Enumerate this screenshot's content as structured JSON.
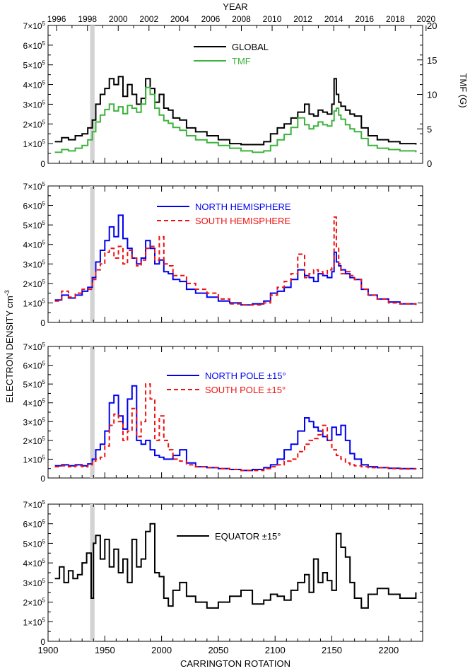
{
  "figure": {
    "top_axis_label": "YEAR",
    "bottom_axis_label": "CARRINGTON ROTATION",
    "y_axis_label": "ELECTRON DENSITY cm",
    "y_axis_label_sup": "-3",
    "shaded_band_cr": [
      1937,
      1941
    ],
    "x_range_cr": [
      1900,
      2230
    ],
    "year_ticks": [
      "1996",
      "1998",
      "2000",
      "2002",
      "2004",
      "2006",
      "2008",
      "2010",
      "2012",
      "2014",
      "2016",
      "2018",
      "2020"
    ],
    "year_tick_cr": [
      1907.5,
      1934.7,
      1961.8,
      1988.9,
      2016.0,
      2043.2,
      2070.3,
      2097.4,
      2124.5,
      2151.7,
      2178.8,
      2205.9,
      2233.0
    ],
    "cr_ticks": [
      "1900",
      "1950",
      "2000",
      "2050",
      "2100",
      "2150",
      "2200"
    ],
    "y_tick_labels": [
      {
        "mant": "0",
        "exp": ""
      },
      {
        "mant": "1×10",
        "exp": "5"
      },
      {
        "mant": "2×10",
        "exp": "5"
      },
      {
        "mant": "3×10",
        "exp": "5"
      },
      {
        "mant": "4×10",
        "exp": "5"
      },
      {
        "mant": "5×10",
        "exp": "5"
      },
      {
        "mant": "6×10",
        "exp": "5"
      },
      {
        "mant": "7×10",
        "exp": "5"
      }
    ],
    "right_axis": {
      "label": "TMF (G)",
      "ticks": [
        "0",
        "5",
        "10",
        "15",
        "20"
      ],
      "range": [
        0,
        20
      ]
    }
  },
  "legend": {
    "panel1": [
      {
        "name": "GLOBAL",
        "color": "#000000"
      },
      {
        "name": "TMF",
        "color": "#3cb33c"
      }
    ],
    "panel2": [
      {
        "name": "NORTH HEMISPHERE",
        "color": "#0000ee"
      },
      {
        "name": "SOUTH HEMISPHERE",
        "color": "#ee1111"
      }
    ],
    "panel3": [
      {
        "name": "NORTH POLE ±15°",
        "color": "#0000ee"
      },
      {
        "name": "SOUTH POLE ±15°",
        "color": "#ee1111"
      }
    ],
    "panel4": [
      {
        "name": "EQUATOR ±15°",
        "color": "#000000"
      }
    ]
  },
  "chart_data": [
    {
      "type": "line",
      "title": "",
      "xlabel": "CARRINGTON ROTATION",
      "ylabel": "ELECTRON DENSITY cm^-3",
      "ylim": [
        0,
        700000
      ],
      "xlim": [
        1900,
        2230
      ],
      "series": [
        {
          "name": "GLOBAL",
          "color": "#000000",
          "dash": "none",
          "x": [
            1906,
            1912,
            1918,
            1924,
            1930,
            1935,
            1939,
            1942,
            1946,
            1950,
            1954,
            1958,
            1962,
            1966,
            1970,
            1974,
            1978,
            1982,
            1986,
            1990,
            1994,
            1998,
            2002,
            2006,
            2010,
            2016,
            2022,
            2030,
            2040,
            2050,
            2060,
            2070,
            2080,
            2090,
            2096,
            2102,
            2108,
            2114,
            2120,
            2126,
            2130,
            2134,
            2138,
            2142,
            2146,
            2150,
            2152,
            2154,
            2156,
            2158,
            2162,
            2166,
            2170,
            2176,
            2182,
            2190,
            2200,
            2210,
            2224
          ],
          "y": [
            110000,
            130000,
            120000,
            140000,
            150000,
            180000,
            220000,
            300000,
            350000,
            380000,
            430000,
            400000,
            440000,
            340000,
            400000,
            350000,
            300000,
            330000,
            430000,
            380000,
            310000,
            350000,
            280000,
            270000,
            230000,
            220000,
            180000,
            160000,
            140000,
            120000,
            100000,
            95000,
            95000,
            110000,
            150000,
            180000,
            200000,
            230000,
            260000,
            300000,
            250000,
            240000,
            270000,
            260000,
            250000,
            300000,
            430000,
            350000,
            310000,
            290000,
            270000,
            250000,
            240000,
            180000,
            140000,
            120000,
            110000,
            100000,
            95000
          ]
        },
        {
          "name": "TMF",
          "color": "#3cb33c",
          "dash": "none",
          "axis": "right",
          "unit": "G",
          "x": [
            1906,
            1912,
            1918,
            1924,
            1930,
            1935,
            1939,
            1942,
            1946,
            1950,
            1954,
            1958,
            1962,
            1966,
            1970,
            1974,
            1978,
            1982,
            1986,
            1990,
            1994,
            1998,
            2002,
            2006,
            2010,
            2016,
            2022,
            2030,
            2040,
            2050,
            2060,
            2070,
            2080,
            2090,
            2096,
            2102,
            2108,
            2114,
            2120,
            2126,
            2130,
            2134,
            2138,
            2142,
            2146,
            2150,
            2152,
            2154,
            2156,
            2158,
            2162,
            2166,
            2170,
            2176,
            2182,
            2190,
            2200,
            2210,
            2224
          ],
          "y": [
            1.6,
            2.0,
            1.8,
            2.2,
            2.6,
            3.4,
            4.6,
            6.0,
            7.0,
            7.8,
            8.6,
            7.6,
            8.2,
            7.2,
            8.4,
            8.0,
            7.4,
            8.6,
            11.0,
            10.0,
            8.0,
            7.0,
            6.2,
            5.8,
            5.2,
            4.8,
            4.0,
            3.4,
            3.0,
            2.6,
            2.2,
            1.8,
            1.6,
            1.8,
            2.6,
            3.4,
            4.2,
            5.2,
            6.6,
            5.6,
            5.0,
            5.4,
            6.0,
            5.6,
            5.4,
            6.2,
            7.6,
            8.0,
            7.0,
            6.4,
            5.6,
            5.0,
            4.6,
            3.6,
            2.6,
            2.2,
            2.0,
            1.8,
            1.6
          ]
        }
      ]
    },
    {
      "type": "line",
      "xlabel": "CARRINGTON ROTATION",
      "ylabel": "ELECTRON DENSITY cm^-3",
      "ylim": [
        0,
        700000
      ],
      "xlim": [
        1900,
        2230
      ],
      "series": [
        {
          "name": "NORTH HEMISPHERE",
          "color": "#0000ee",
          "dash": "none",
          "x": [
            1906,
            1912,
            1918,
            1924,
            1930,
            1935,
            1939,
            1942,
            1946,
            1950,
            1954,
            1958,
            1962,
            1966,
            1970,
            1974,
            1978,
            1982,
            1986,
            1990,
            1994,
            1998,
            2002,
            2006,
            2010,
            2016,
            2022,
            2030,
            2040,
            2050,
            2060,
            2070,
            2080,
            2090,
            2096,
            2102,
            2108,
            2114,
            2120,
            2126,
            2130,
            2134,
            2138,
            2142,
            2146,
            2150,
            2152,
            2154,
            2156,
            2158,
            2162,
            2166,
            2170,
            2176,
            2182,
            2190,
            2200,
            2210,
            2224
          ],
          "y": [
            115000,
            140000,
            125000,
            140000,
            160000,
            180000,
            230000,
            310000,
            370000,
            420000,
            490000,
            440000,
            550000,
            430000,
            380000,
            330000,
            300000,
            330000,
            420000,
            380000,
            300000,
            320000,
            260000,
            250000,
            220000,
            210000,
            170000,
            150000,
            130000,
            110000,
            100000,
            90000,
            95000,
            110000,
            150000,
            160000,
            180000,
            220000,
            270000,
            240000,
            230000,
            210000,
            250000,
            240000,
            230000,
            260000,
            360000,
            310000,
            290000,
            270000,
            250000,
            230000,
            220000,
            170000,
            140000,
            120000,
            105000,
            95000,
            90000
          ]
        },
        {
          "name": "SOUTH HEMISPHERE",
          "color": "#ee1111",
          "dash": "6,4",
          "x": [
            1906,
            1912,
            1918,
            1924,
            1930,
            1935,
            1939,
            1942,
            1946,
            1950,
            1954,
            1958,
            1962,
            1966,
            1970,
            1974,
            1978,
            1982,
            1986,
            1990,
            1994,
            1998,
            2002,
            2006,
            2010,
            2016,
            2022,
            2030,
            2040,
            2050,
            2060,
            2070,
            2080,
            2090,
            2096,
            2102,
            2108,
            2114,
            2120,
            2126,
            2130,
            2134,
            2138,
            2142,
            2146,
            2150,
            2152,
            2154,
            2156,
            2158,
            2162,
            2166,
            2170,
            2176,
            2182,
            2190,
            2200,
            2210,
            2224
          ],
          "y": [
            110000,
            160000,
            130000,
            150000,
            170000,
            170000,
            220000,
            270000,
            300000,
            360000,
            380000,
            330000,
            390000,
            300000,
            370000,
            330000,
            290000,
            320000,
            380000,
            390000,
            320000,
            440000,
            300000,
            290000,
            240000,
            240000,
            200000,
            170000,
            150000,
            120000,
            95000,
            90000,
            90000,
            100000,
            140000,
            180000,
            210000,
            250000,
            350000,
            230000,
            250000,
            270000,
            260000,
            250000,
            270000,
            280000,
            540000,
            380000,
            300000,
            250000,
            260000,
            240000,
            220000,
            170000,
            140000,
            120000,
            100000,
            95000,
            90000
          ]
        }
      ]
    },
    {
      "type": "line",
      "xlabel": "CARRINGTON ROTATION",
      "ylabel": "ELECTRON DENSITY cm^-3",
      "ylim": [
        0,
        700000
      ],
      "xlim": [
        1900,
        2230
      ],
      "series": [
        {
          "name": "NORTH POLE ±15°",
          "color": "#0000ee",
          "dash": "none",
          "x": [
            1906,
            1912,
            1918,
            1924,
            1930,
            1935,
            1939,
            1942,
            1946,
            1950,
            1954,
            1958,
            1962,
            1966,
            1970,
            1974,
            1978,
            1982,
            1986,
            1990,
            1994,
            1998,
            2002,
            2006,
            2010,
            2016,
            2022,
            2030,
            2040,
            2050,
            2060,
            2070,
            2080,
            2090,
            2096,
            2102,
            2108,
            2114,
            2120,
            2126,
            2130,
            2134,
            2138,
            2142,
            2146,
            2150,
            2154,
            2158,
            2162,
            2166,
            2170,
            2176,
            2182,
            2190,
            2200,
            2210,
            2224
          ],
          "y": [
            65000,
            70000,
            65000,
            70000,
            65000,
            75000,
            100000,
            150000,
            180000,
            250000,
            400000,
            440000,
            330000,
            260000,
            420000,
            490000,
            200000,
            180000,
            200000,
            150000,
            120000,
            110000,
            100000,
            100000,
            120000,
            150000,
            80000,
            60000,
            55000,
            50000,
            45000,
            40000,
            45000,
            55000,
            70000,
            100000,
            150000,
            180000,
            250000,
            320000,
            300000,
            270000,
            250000,
            220000,
            200000,
            270000,
            230000,
            280000,
            200000,
            130000,
            100000,
            70000,
            60000,
            55000,
            52000,
            50000,
            50000
          ]
        },
        {
          "name": "SOUTH POLE ±15°",
          "color": "#ee1111",
          "dash": "6,4",
          "x": [
            1906,
            1912,
            1918,
            1924,
            1930,
            1935,
            1939,
            1942,
            1946,
            1950,
            1954,
            1958,
            1962,
            1966,
            1970,
            1974,
            1978,
            1982,
            1986,
            1990,
            1994,
            1998,
            2002,
            2006,
            2010,
            2016,
            2022,
            2030,
            2040,
            2050,
            2060,
            2070,
            2080,
            2090,
            2096,
            2102,
            2108,
            2114,
            2120,
            2126,
            2130,
            2134,
            2138,
            2142,
            2146,
            2150,
            2154,
            2158,
            2162,
            2166,
            2170,
            2176,
            2182,
            2190,
            2200,
            2210,
            2224
          ],
          "y": [
            60000,
            65000,
            60000,
            65000,
            60000,
            70000,
            90000,
            100000,
            110000,
            170000,
            280000,
            340000,
            300000,
            200000,
            250000,
            370000,
            220000,
            300000,
            500000,
            420000,
            200000,
            330000,
            200000,
            150000,
            100000,
            90000,
            70000,
            60000,
            55000,
            50000,
            45000,
            40000,
            40000,
            50000,
            60000,
            70000,
            90000,
            100000,
            140000,
            180000,
            200000,
            210000,
            230000,
            280000,
            200000,
            150000,
            120000,
            100000,
            80000,
            70000,
            65000,
            60000,
            55000,
            55000,
            50000,
            48000,
            46000
          ]
        }
      ]
    },
    {
      "type": "line",
      "xlabel": "CARRINGTON ROTATION",
      "ylabel": "ELECTRON DENSITY cm^-3",
      "ylim": [
        0,
        700000
      ],
      "xlim": [
        1900,
        2230
      ],
      "series": [
        {
          "name": "EQUATOR ±15°",
          "color": "#000000",
          "dash": "none",
          "x": [
            1906,
            1910,
            1914,
            1918,
            1922,
            1926,
            1930,
            1934,
            1938,
            1940,
            1942,
            1946,
            1950,
            1954,
            1958,
            1962,
            1966,
            1970,
            1974,
            1978,
            1982,
            1986,
            1990,
            1994,
            1998,
            2002,
            2006,
            2010,
            2016,
            2022,
            2030,
            2040,
            2050,
            2060,
            2070,
            2080,
            2090,
            2096,
            2102,
            2108,
            2114,
            2120,
            2126,
            2130,
            2134,
            2138,
            2142,
            2146,
            2150,
            2154,
            2158,
            2162,
            2166,
            2170,
            2176,
            2182,
            2190,
            2200,
            2210,
            2224
          ],
          "y": [
            320000,
            380000,
            300000,
            360000,
            320000,
            340000,
            400000,
            450000,
            220000,
            500000,
            540000,
            420000,
            520000,
            380000,
            470000,
            350000,
            420000,
            300000,
            520000,
            380000,
            420000,
            560000,
            600000,
            350000,
            330000,
            220000,
            180000,
            260000,
            300000,
            230000,
            200000,
            170000,
            200000,
            230000,
            260000,
            190000,
            210000,
            240000,
            230000,
            210000,
            260000,
            300000,
            340000,
            250000,
            420000,
            300000,
            350000,
            310000,
            260000,
            550000,
            480000,
            430000,
            300000,
            220000,
            170000,
            240000,
            270000,
            240000,
            220000,
            250000
          ]
        }
      ]
    }
  ]
}
